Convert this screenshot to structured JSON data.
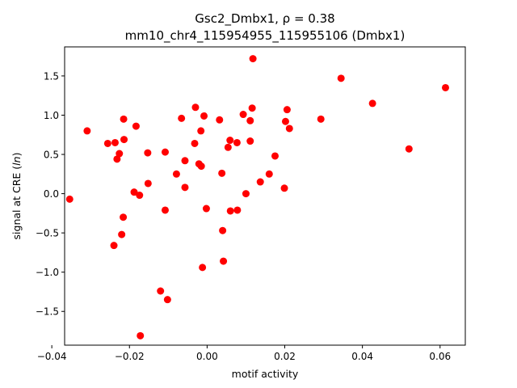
{
  "chart_data": {
    "type": "scatter",
    "title_line1": "Gsc2_Dmbx1, ρ = 0.38",
    "title_line2": "mm10_chr4_115954955_115955106 (Dmbx1)",
    "xlabel": "motif activity",
    "ylabel": "signal at CRE (ln)",
    "xlim": [
      -0.0367,
      0.0665
    ],
    "ylim": [
      -1.93,
      1.87
    ],
    "xticks": [
      -0.04,
      -0.02,
      0.0,
      0.02,
      0.04,
      0.06
    ],
    "xtick_labels": [
      "−0.04",
      "−0.02",
      "0.00",
      "0.02",
      "0.04",
      "0.06"
    ],
    "yticks": [
      -1.5,
      -1.0,
      -0.5,
      0.0,
      0.5,
      1.0,
      1.5
    ],
    "ytick_labels": [
      "−1.5",
      "−1.0",
      "−0.5",
      "0.0",
      "0.5",
      "1.0",
      "1.5"
    ],
    "grid": false,
    "legend": "none",
    "marker_color": "#ff0000",
    "points": [
      {
        "x": -0.0354,
        "y": -0.07
      },
      {
        "x": -0.0309,
        "y": 0.8
      },
      {
        "x": -0.0256,
        "y": 0.64
      },
      {
        "x": -0.0237,
        "y": 0.65
      },
      {
        "x": -0.0232,
        "y": 0.44
      },
      {
        "x": -0.0226,
        "y": 0.51
      },
      {
        "x": -0.024,
        "y": -0.66
      },
      {
        "x": -0.0215,
        "y": 0.95
      },
      {
        "x": -0.0214,
        "y": 0.69
      },
      {
        "x": -0.022,
        "y": -0.52
      },
      {
        "x": -0.0216,
        "y": -0.3
      },
      {
        "x": -0.0183,
        "y": 0.86
      },
      {
        "x": -0.0188,
        "y": 0.02
      },
      {
        "x": -0.0174,
        "y": -0.02
      },
      {
        "x": -0.0172,
        "y": -1.81
      },
      {
        "x": -0.0153,
        "y": 0.52
      },
      {
        "x": -0.0152,
        "y": 0.13
      },
      {
        "x": -0.012,
        "y": -1.24
      },
      {
        "x": -0.0108,
        "y": 0.53
      },
      {
        "x": -0.0108,
        "y": -0.21
      },
      {
        "x": -0.0102,
        "y": -1.35
      },
      {
        "x": -0.0079,
        "y": 0.25
      },
      {
        "x": -0.0066,
        "y": 0.96
      },
      {
        "x": -0.0057,
        "y": 0.42
      },
      {
        "x": -0.0057,
        "y": 0.08
      },
      {
        "x": -0.003,
        "y": 1.1
      },
      {
        "x": -0.0032,
        "y": 0.64
      },
      {
        "x": -0.0021,
        "y": 0.38
      },
      {
        "x": -0.0016,
        "y": 0.8
      },
      {
        "x": -0.0015,
        "y": 0.35
      },
      {
        "x": -0.0008,
        "y": 0.99
      },
      {
        "x": -0.0012,
        "y": -0.94
      },
      {
        "x": -0.0002,
        "y": -0.19
      },
      {
        "x": 0.0032,
        "y": 0.94
      },
      {
        "x": 0.0038,
        "y": 0.26
      },
      {
        "x": 0.004,
        "y": -0.47
      },
      {
        "x": 0.0042,
        "y": -0.86
      },
      {
        "x": 0.0054,
        "y": 0.59
      },
      {
        "x": 0.0059,
        "y": 0.68
      },
      {
        "x": 0.006,
        "y": -0.22
      },
      {
        "x": 0.0077,
        "y": 0.65
      },
      {
        "x": 0.0078,
        "y": -0.21
      },
      {
        "x": 0.0093,
        "y": 1.01
      },
      {
        "x": 0.01,
        "y": 0.0
      },
      {
        "x": 0.0111,
        "y": 0.93
      },
      {
        "x": 0.0111,
        "y": 0.67
      },
      {
        "x": 0.0116,
        "y": 1.09
      },
      {
        "x": 0.0118,
        "y": 1.72
      },
      {
        "x": 0.0137,
        "y": 0.15
      },
      {
        "x": 0.016,
        "y": 0.25
      },
      {
        "x": 0.0175,
        "y": 0.48
      },
      {
        "x": 0.0199,
        "y": 0.07
      },
      {
        "x": 0.0202,
        "y": 0.92
      },
      {
        "x": 0.0206,
        "y": 1.07
      },
      {
        "x": 0.0212,
        "y": 0.83
      },
      {
        "x": 0.0293,
        "y": 0.95
      },
      {
        "x": 0.0345,
        "y": 1.47
      },
      {
        "x": 0.0426,
        "y": 1.15
      },
      {
        "x": 0.052,
        "y": 0.57
      },
      {
        "x": 0.0614,
        "y": 1.35
      }
    ]
  }
}
